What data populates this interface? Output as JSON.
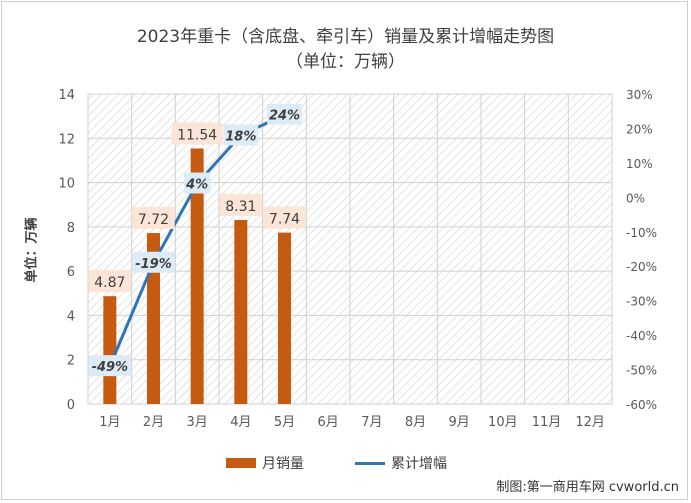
{
  "chart_data": {
    "type": "bar",
    "title": "2023年重卡（含底盘、牵引车）销量及累计增幅走势图",
    "subtitle": "（单位：万辆）",
    "ylabel": "单位：万辆",
    "categories": [
      "1月",
      "2月",
      "3月",
      "4月",
      "5月",
      "6月",
      "7月",
      "8月",
      "9月",
      "10月",
      "11月",
      "12月"
    ],
    "series": [
      {
        "name": "月销量",
        "type": "bar",
        "axis": "left",
        "color": "#c55a11",
        "values": [
          4.87,
          7.72,
          11.54,
          8.31,
          7.74,
          null,
          null,
          null,
          null,
          null,
          null,
          null
        ],
        "labels": [
          "4.87",
          "7.72",
          "11.54",
          "8.31",
          "7.74"
        ]
      },
      {
        "name": "累计增幅",
        "type": "line",
        "axis": "right",
        "color": "#2e75b6",
        "values": [
          -49,
          -19,
          4,
          18,
          24,
          null,
          null,
          null,
          null,
          null,
          null,
          null
        ],
        "labels": [
          "-49%",
          "-19%",
          "4%",
          "18%",
          "24%"
        ]
      }
    ],
    "y_left": {
      "range": [
        0,
        14
      ],
      "ticks": [
        "0",
        "2",
        "4",
        "6",
        "8",
        "10",
        "12",
        "14"
      ]
    },
    "y_right": {
      "range": [
        -60,
        30
      ],
      "unit": "%",
      "ticks": [
        "-60%",
        "-50%",
        "-40%",
        "-30%",
        "-20%",
        "-10%",
        "0%",
        "10%",
        "20%",
        "30%"
      ]
    },
    "grid": true,
    "legend_position": "bottom",
    "credit": "制图:第一商用车网 cvworld.cn"
  }
}
